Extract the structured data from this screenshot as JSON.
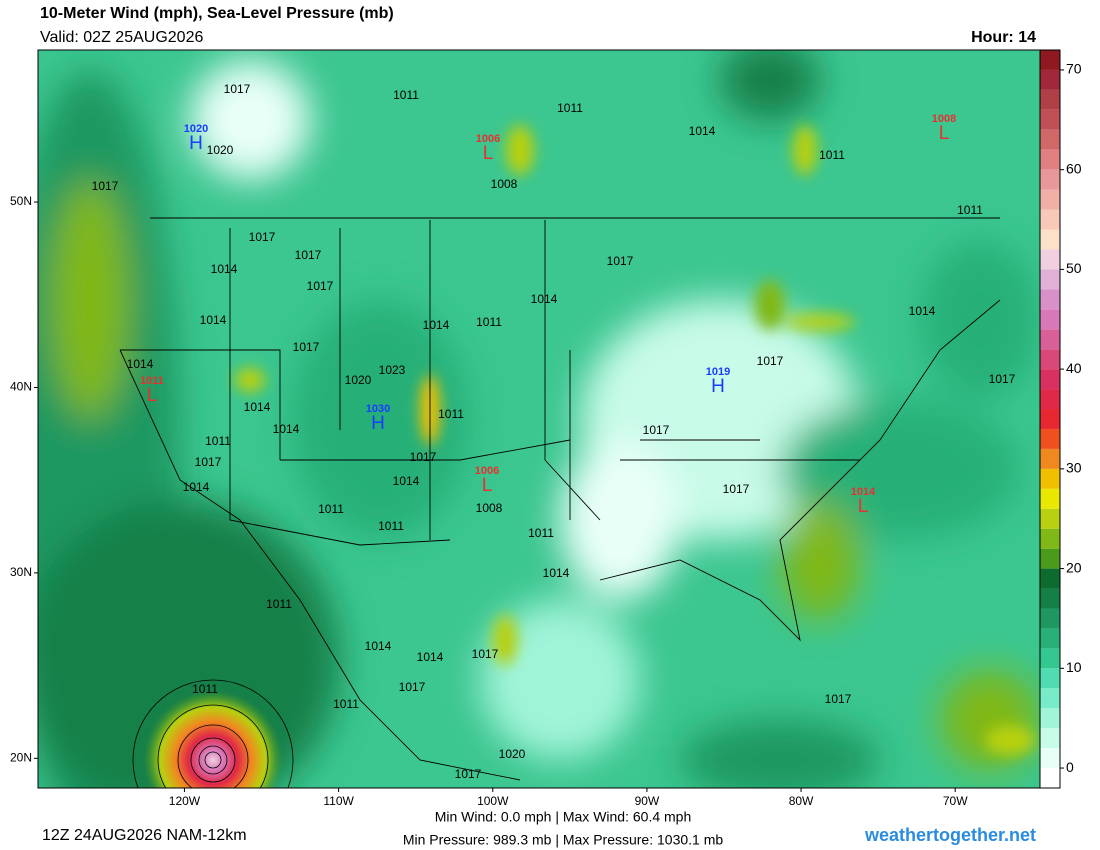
{
  "header": {
    "title": "10-Meter Wind (mph), Sea-Level Pressure (mb)",
    "valid": "Valid: 02Z 25AUG2026",
    "hour": "Hour: 14"
  },
  "map": {
    "lat_lim": [
      18.4,
      58.2
    ],
    "lon_lim": [
      -129.5,
      -64.5
    ],
    "lat_ticks": [
      {
        "value": 20,
        "label": "20N"
      },
      {
        "value": 30,
        "label": "30N"
      },
      {
        "value": 40,
        "label": "40N"
      },
      {
        "value": 50,
        "label": "50N"
      }
    ],
    "lon_ticks": [
      {
        "value": -120,
        "label": "120W"
      },
      {
        "value": -110,
        "label": "110W"
      },
      {
        "value": -100,
        "label": "100W"
      },
      {
        "value": -90,
        "label": "90W"
      },
      {
        "value": -80,
        "label": "80W"
      },
      {
        "value": -70,
        "label": "70W"
      }
    ],
    "isobar_labels": [
      "1017",
      "1011",
      "1020",
      "1017",
      "1011",
      "1014",
      "1011",
      "1011",
      "1008",
      "1017",
      "1014",
      "1017",
      "1017",
      "1017",
      "1014",
      "1011",
      "1014",
      "1014",
      "1014",
      "1014",
      "1017",
      "1020",
      "1023",
      "1017",
      "1017",
      "1014",
      "1011",
      "1014",
      "1011",
      "1017",
      "1017",
      "1017",
      "1014",
      "1014",
      "1017",
      "1008",
      "1011",
      "1011",
      "1011",
      "1014",
      "1011",
      "1014",
      "1014",
      "1017",
      "1011",
      "1017",
      "1011",
      "1017",
      "1020",
      "1017"
    ],
    "centers": [
      {
        "type": "H",
        "value": "1020"
      },
      {
        "type": "L",
        "value": "1006"
      },
      {
        "type": "L",
        "value": "1008"
      },
      {
        "type": "H",
        "value": "1019"
      },
      {
        "type": "L",
        "value": "1011"
      },
      {
        "type": "H",
        "value": "1030"
      },
      {
        "type": "L",
        "value": "1006"
      },
      {
        "type": "L",
        "value": "1014"
      }
    ]
  },
  "colorbar": {
    "lim": [
      -2,
      72
    ],
    "ticks": [
      0,
      10,
      20,
      30,
      40,
      50,
      60,
      70
    ],
    "colors": [
      "#ffffff",
      "#e8fff8",
      "#c8fbe8",
      "#a0f4d8",
      "#78ecc8",
      "#50dcb0",
      "#34c890",
      "#28b078",
      "#1e9860",
      "#148048",
      "#0c6c30",
      "#4a9a1c",
      "#80b818",
      "#b8d010",
      "#e8e800",
      "#f0c000",
      "#f08820",
      "#f05020",
      "#e82830",
      "#e02848",
      "#d83060",
      "#d84878",
      "#d86098",
      "#d878b8",
      "#d890c8",
      "#e0b0d8",
      "#f0d0e0",
      "#fde0c8",
      "#f8c8b8",
      "#f0b0a8",
      "#e89898",
      "#e08080",
      "#d06868",
      "#c05058",
      "#b04048",
      "#a02838",
      "#901820"
    ]
  },
  "footer": {
    "run": "12Z 24AUG2026 NAM-12km",
    "wind": "Min Wind:   0.0 mph | Max Wind:  60.4 mph",
    "pressure": "Min Pressure: 989.3 mb | Max Pressure: 1030.1 mb",
    "site": "weathertogether.net"
  }
}
